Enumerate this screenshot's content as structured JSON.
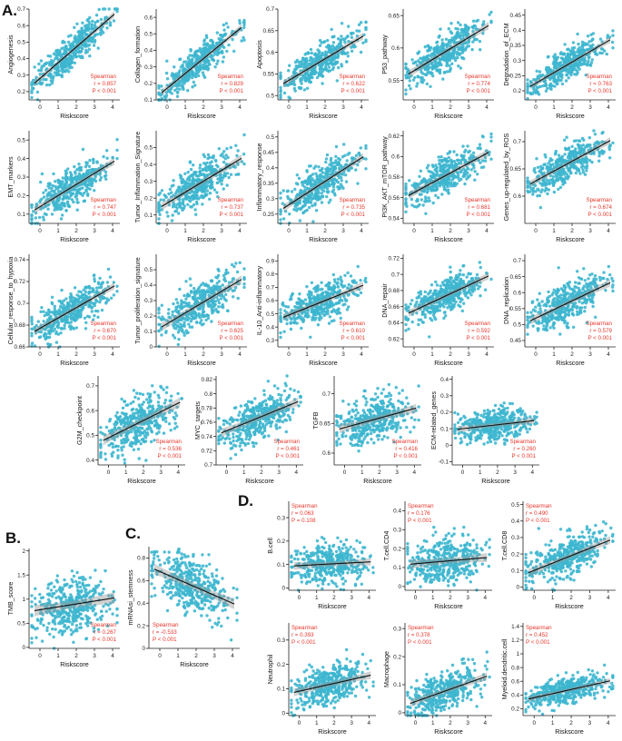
{
  "panels": [
    {
      "label": "A."
    },
    {
      "label": "B."
    },
    {
      "label": "C."
    },
    {
      "label": "D."
    }
  ],
  "chart_data": [
    {
      "type": "scatter",
      "ylabel": "Angiogenesis",
      "xlabel": "Riskscore",
      "xlim": [
        -0.6,
        4.4
      ],
      "ylim": [
        0.15,
        0.7
      ],
      "yticks": [
        0.2,
        0.3,
        0.4,
        0.5,
        0.6,
        0.7
      ],
      "xticks": [
        0,
        1,
        2,
        3,
        4
      ],
      "fit": [
        0.28,
        0.095
      ],
      "spread": 0.05,
      "method": "Spearman",
      "r": "r = 0.857",
      "p": "P < 0.001",
      "statpos": "bottom-right"
    },
    {
      "type": "scatter",
      "ylabel": "Collagen_formation",
      "xlabel": "Riskscore",
      "xlim": [
        -0.6,
        4.4
      ],
      "ylim": [
        0.1,
        0.65
      ],
      "yticks": [
        0.1,
        0.2,
        0.3,
        0.4,
        0.5,
        0.6
      ],
      "xticks": [
        0,
        1,
        2,
        3,
        4
      ],
      "fit": [
        0.17,
        0.09
      ],
      "spread": 0.05,
      "method": "Spearman",
      "r": "r = 0.829",
      "p": "P < 0.001",
      "statpos": "bottom-right"
    },
    {
      "type": "scatter",
      "ylabel": "Apoptosis",
      "xlabel": "Riskscore",
      "xlim": [
        -0.6,
        4.4
      ],
      "ylim": [
        0.49,
        0.7
      ],
      "yticks": [
        0.5,
        0.55,
        0.6,
        0.65,
        0.7
      ],
      "xticks": [
        0,
        1,
        2,
        3,
        4
      ],
      "fit": [
        0.535,
        0.025
      ],
      "spread": 0.02,
      "method": "Spearman",
      "r": "r = 0.622",
      "p": "P < 0.001",
      "statpos": "bottom-right"
    },
    {
      "type": "scatter",
      "ylabel": "P53_pathway",
      "xlabel": "Riskscore",
      "xlim": [
        -0.6,
        4.4
      ],
      "ylim": [
        0.52,
        0.66
      ],
      "yticks": [
        0.55,
        0.6,
        0.65
      ],
      "xticks": [
        0,
        1,
        2,
        3,
        4
      ],
      "fit": [
        0.565,
        0.017
      ],
      "spread": 0.015,
      "method": "Spearman",
      "r": "r = 0.774",
      "p": "P < 0.001",
      "statpos": "bottom-right"
    },
    {
      "type": "scatter",
      "ylabel": "Degradation_of_ECM",
      "xlabel": "Riskscore",
      "xlim": [
        -0.6,
        4.4
      ],
      "ylim": [
        0.17,
        0.47
      ],
      "yticks": [
        0.2,
        0.25,
        0.3,
        0.35,
        0.4,
        0.45
      ],
      "xticks": [
        0,
        1,
        2,
        3,
        4
      ],
      "fit": [
        0.225,
        0.035
      ],
      "spread": 0.025,
      "method": "Spearman",
      "r": "r = 0.763",
      "p": "P < 0.001",
      "statpos": "bottom-right"
    },
    {
      "type": "scatter",
      "ylabel": "EMT_markers",
      "xlabel": "Riskscore",
      "xlim": [
        -0.6,
        4.4
      ],
      "ylim": [
        0.05,
        0.55
      ],
      "yticks": [
        0.1,
        0.2,
        0.3,
        0.4,
        0.5
      ],
      "xticks": [
        0,
        1,
        2,
        3,
        4
      ],
      "fit": [
        0.14,
        0.06
      ],
      "spread": 0.05,
      "method": "Spearman",
      "r": "r = 0.747",
      "p": "P < 0.001",
      "statpos": "bottom-right"
    },
    {
      "type": "scatter",
      "ylabel": "Tumor_Inflammation_Signature",
      "xlabel": "Riskscore",
      "xlim": [
        -0.6,
        4.4
      ],
      "ylim": [
        0.05,
        0.6
      ],
      "yticks": [
        0.1,
        0.2,
        0.3,
        0.4,
        0.5
      ],
      "xticks": [
        0,
        1,
        2,
        3,
        4
      ],
      "fit": [
        0.17,
        0.065
      ],
      "spread": 0.06,
      "method": "Spearman",
      "r": "r = 0.737",
      "p": "P < 0.001",
      "statpos": "bottom-right"
    },
    {
      "type": "scatter",
      "ylabel": "Inflammatory_response",
      "xlabel": "Riskscore",
      "xlim": [
        -0.6,
        4.4
      ],
      "ylim": [
        0.22,
        0.52
      ],
      "yticks": [
        0.25,
        0.3,
        0.35,
        0.4,
        0.45,
        0.5
      ],
      "xticks": [
        0,
        1,
        2,
        3,
        4
      ],
      "fit": [
        0.28,
        0.038
      ],
      "spread": 0.03,
      "method": "Spearman",
      "r": "r = 0.735",
      "p": "P < 0.001",
      "statpos": "bottom-right"
    },
    {
      "type": "scatter",
      "ylabel": "PI3K_AKT_mTOR_pathway",
      "xlabel": "Riskscore",
      "xlim": [
        -0.6,
        4.4
      ],
      "ylim": [
        0.535,
        0.625
      ],
      "yticks": [
        0.54,
        0.56,
        0.58,
        0.6,
        0.62
      ],
      "xticks": [
        0,
        1,
        2,
        3,
        4
      ],
      "fit": [
        0.565,
        0.0095
      ],
      "spread": 0.009,
      "method": "Spearman",
      "r": "r = 0.681",
      "p": "P < 0.001",
      "statpos": "bottom-right"
    },
    {
      "type": "scatter",
      "ylabel": "Genes_up-regulated_by_ROS",
      "xlabel": "Riskscore",
      "xlim": [
        -0.6,
        4.4
      ],
      "ylim": [
        0.55,
        0.72
      ],
      "yticks": [
        0.6,
        0.65,
        0.7
      ],
      "xticks": [
        0,
        1,
        2,
        3,
        4
      ],
      "fit": [
        0.628,
        0.018
      ],
      "spread": 0.016,
      "method": "Spearman",
      "r": "r = 0.674",
      "p": "P < 0.001",
      "statpos": "bottom-right"
    },
    {
      "type": "scatter",
      "ylabel": "Cellular_response_to_hypoxia",
      "xlabel": "Riskscore",
      "xlim": [
        -0.6,
        4.4
      ],
      "ylim": [
        0.66,
        0.745
      ],
      "yticks": [
        0.66,
        0.68,
        0.7,
        0.72,
        0.74
      ],
      "xticks": [
        0,
        1,
        2,
        3,
        4
      ],
      "fit": [
        0.677,
        0.0095
      ],
      "spread": 0.008,
      "method": "Spearman",
      "r": "r = 0.670",
      "p": "P < 0.001",
      "statpos": "bottom-right"
    },
    {
      "type": "scatter",
      "ylabel": "Tumor_proliferation_signature",
      "xlabel": "Riskscore",
      "xlim": [
        -0.6,
        4.4
      ],
      "ylim": [
        0.0,
        0.6
      ],
      "yticks": [
        0.0,
        0.1,
        0.2,
        0.3,
        0.4,
        0.5
      ],
      "xticks": [
        0,
        1,
        2,
        3,
        4
      ],
      "fit": [
        0.15,
        0.07
      ],
      "spread": 0.07,
      "method": "Spearman",
      "r": "r = 0.625",
      "p": "P < 0.001",
      "statpos": "bottom-right"
    },
    {
      "type": "scatter",
      "ylabel": "IL-10_Anti-inflammatory",
      "xlabel": "Riskscore",
      "xlim": [
        -0.6,
        4.4
      ],
      "ylim": [
        0.25,
        0.95
      ],
      "yticks": [
        0.3,
        0.4,
        0.5,
        0.6,
        0.7,
        0.8,
        0.9
      ],
      "xticks": [
        0,
        1,
        2,
        3,
        4
      ],
      "fit": [
        0.49,
        0.055
      ],
      "spread": 0.07,
      "method": "Spearman",
      "r": "r = 0.610",
      "p": "P < 0.001",
      "statpos": "bottom-right"
    },
    {
      "type": "scatter",
      "ylabel": "DNA_repair",
      "xlabel": "Riskscore",
      "xlim": [
        -0.6,
        4.4
      ],
      "ylim": [
        0.61,
        0.725
      ],
      "yticks": [
        0.62,
        0.64,
        0.66,
        0.68,
        0.7,
        0.72
      ],
      "xticks": [
        0,
        1,
        2,
        3,
        4
      ],
      "fit": [
        0.655,
        0.0105
      ],
      "spread": 0.011,
      "method": "Spearman",
      "r": "r = 0.592",
      "p": "P < 0.001",
      "statpos": "bottom-right"
    },
    {
      "type": "scatter",
      "ylabel": "DNA_replication",
      "xlabel": "Riskscore",
      "xlim": [
        -0.6,
        4.4
      ],
      "ylim": [
        0.43,
        0.72
      ],
      "yticks": [
        0.45,
        0.5,
        0.55,
        0.6,
        0.65,
        0.7
      ],
      "xticks": [
        0,
        1,
        2,
        3,
        4
      ],
      "fit": [
        0.52,
        0.027
      ],
      "spread": 0.03,
      "method": "Spearman",
      "r": "r = 0.579",
      "p": "P < 0.001",
      "statpos": "bottom-right"
    },
    {
      "type": "scatter",
      "ylabel": "G2M_checkpoint",
      "xlabel": "Riskscore",
      "xlim": [
        -0.6,
        4.4
      ],
      "ylim": [
        0.38,
        0.74
      ],
      "yticks": [
        0.4,
        0.5,
        0.6,
        0.7
      ],
      "xticks": [
        0,
        1,
        2,
        3,
        4
      ],
      "fit": [
        0.49,
        0.035
      ],
      "spread": 0.05,
      "method": "Spearman",
      "r": "r = 0.536",
      "p": "P < 0.001",
      "statpos": "bottom-right"
    },
    {
      "type": "scatter",
      "ylabel": "MYC_targets",
      "xlabel": "Riskscore",
      "xlim": [
        -0.6,
        4.4
      ],
      "ylim": [
        0.7,
        0.825
      ],
      "yticks": [
        0.7,
        0.72,
        0.74,
        0.76,
        0.78,
        0.8,
        0.82
      ],
      "xticks": [
        0,
        1,
        2,
        3,
        4
      ],
      "fit": [
        0.748,
        0.01
      ],
      "spread": 0.015,
      "method": "Spearman",
      "r": "r = 0.461",
      "p": "P < 0.001",
      "statpos": "bottom-right"
    },
    {
      "type": "scatter",
      "ylabel": "TGFB",
      "xlabel": "Riskscore",
      "xlim": [
        -0.6,
        4.4
      ],
      "ylim": [
        0.58,
        0.73
      ],
      "yticks": [
        0.6,
        0.65,
        0.7
      ],
      "xticks": [
        0,
        1,
        2,
        3,
        4
      ],
      "fit": [
        0.643,
        0.008
      ],
      "spread": 0.018,
      "method": "Spearman",
      "r": "r = 0.416",
      "p": "P < 0.001",
      "statpos": "bottom-right"
    },
    {
      "type": "scatter",
      "ylabel": "ECM-related_genes",
      "xlabel": "Riskscore",
      "xlim": [
        -0.6,
        4.4
      ],
      "ylim": [
        -0.12,
        0.42
      ],
      "yticks": [
        -0.1,
        0.0,
        0.1,
        0.2,
        0.3,
        0.4
      ],
      "xticks": [
        0,
        1,
        2,
        3,
        4
      ],
      "fit": [
        0.1,
        0.012
      ],
      "spread": 0.05,
      "method": "Spearman",
      "r": "r = 0.260",
      "p": "P < 0.001",
      "statpos": "bottom-right"
    },
    {
      "type": "scatter",
      "ylabel": "TMB_score",
      "xlabel": "Riskscore",
      "xlim": [
        -0.6,
        4.4
      ],
      "ylim": [
        -0.02,
        2.05
      ],
      "yticks": [
        0.0,
        0.5,
        1.0,
        1.5,
        2.0
      ],
      "xticks": [
        0,
        1,
        2,
        3,
        4
      ],
      "fit": [
        0.78,
        0.06
      ],
      "spread": 0.3,
      "method": "Spearman",
      "r": "r = 0.267",
      "p": "P < 0.001",
      "statpos": "bottom-right"
    },
    {
      "type": "scatter",
      "ylabel": "mRNAsi_stemness",
      "xlabel": "Riskscore",
      "xlim": [
        -0.6,
        4.4
      ],
      "ylim": [
        0.0,
        0.9
      ],
      "yticks": [
        0.0,
        0.2,
        0.4,
        0.6,
        0.8
      ],
      "xticks": [
        0,
        1,
        2,
        3,
        4
      ],
      "fit": [
        0.68,
        -0.07
      ],
      "spread": 0.12,
      "method": "Spearman",
      "r": "r = -0.533",
      "p": "P < 0.001",
      "statpos": "bottom-left"
    },
    {
      "type": "scatter",
      "ylabel": "B.cell",
      "xlabel": "Riskscore",
      "xlim": [
        -0.6,
        4.4
      ],
      "ylim": [
        -0.01,
        0.37
      ],
      "yticks": [
        0.0,
        0.1,
        0.2,
        0.3
      ],
      "xticks": [
        0,
        1,
        2,
        3,
        4
      ],
      "fit": [
        0.095,
        0.004
      ],
      "spread": 0.04,
      "method": "Spearman",
      "r": "r = 0.063",
      "p": "P = 0.108",
      "statpos": "top-left"
    },
    {
      "type": "scatter",
      "ylabel": "T.cell.CD4",
      "xlabel": "Riskscore",
      "xlim": [
        -0.6,
        4.4
      ],
      "ylim": [
        -0.02,
        0.45
      ],
      "yticks": [
        0.0,
        0.1,
        0.2,
        0.3,
        0.4
      ],
      "xticks": [
        0,
        1,
        2,
        3,
        4
      ],
      "fit": [
        0.12,
        0.008
      ],
      "spread": 0.06,
      "method": "Spearman",
      "r": "r = 0.176",
      "p": "P < 0.001",
      "statpos": "top-left"
    },
    {
      "type": "scatter",
      "ylabel": "T.cell.CD8",
      "xlabel": "Riskscore",
      "xlim": [
        -0.6,
        4.4
      ],
      "ylim": [
        -0.02,
        0.52
      ],
      "yticks": [
        0.0,
        0.1,
        0.2,
        0.3,
        0.4,
        0.5
      ],
      "xticks": [
        0,
        1,
        2,
        3,
        4
      ],
      "fit": [
        0.1,
        0.045
      ],
      "spread": 0.06,
      "method": "Spearman",
      "r": "r = 0.490",
      "p": "P < 0.001",
      "statpos": "top-left"
    },
    {
      "type": "scatter",
      "ylabel": "Neutrophil",
      "xlabel": "Riskscore",
      "xlim": [
        -0.6,
        4.4
      ],
      "ylim": [
        -0.01,
        0.37
      ],
      "yticks": [
        0.0,
        0.1,
        0.2,
        0.3
      ],
      "xticks": [
        0,
        1,
        2,
        3,
        4
      ],
      "fit": [
        0.09,
        0.016
      ],
      "spread": 0.04,
      "method": "Spearman",
      "r": "r = 0.393",
      "p": "P < 0.001",
      "statpos": "top-left"
    },
    {
      "type": "scatter",
      "ylabel": "Macrophage",
      "xlabel": "Riskscore",
      "xlim": [
        -0.6,
        4.4
      ],
      "ylim": [
        -0.01,
        0.32
      ],
      "yticks": [
        0.0,
        0.1,
        0.2,
        0.3
      ],
      "xticks": [
        0,
        1,
        2,
        3,
        4
      ],
      "fit": [
        0.04,
        0.022
      ],
      "spread": 0.035,
      "method": "Spearman",
      "r": "r = 0.378",
      "p": "P < 0.001",
      "statpos": "top-left"
    },
    {
      "type": "scatter",
      "ylabel": "Myeloid.dendritic.cell",
      "xlabel": "Riskscore",
      "xlim": [
        -0.6,
        4.4
      ],
      "ylim": [
        0.1,
        1.45
      ],
      "yticks": [
        0.2,
        0.4,
        0.6,
        0.8,
        1.0,
        1.2,
        1.4
      ],
      "xticks": [
        0,
        1,
        2,
        3,
        4
      ],
      "fit": [
        0.36,
        0.06
      ],
      "spread": 0.1,
      "method": "Spearman",
      "r": "r = 0.452",
      "p": "P < 0.001",
      "statpos": "top-left"
    }
  ]
}
